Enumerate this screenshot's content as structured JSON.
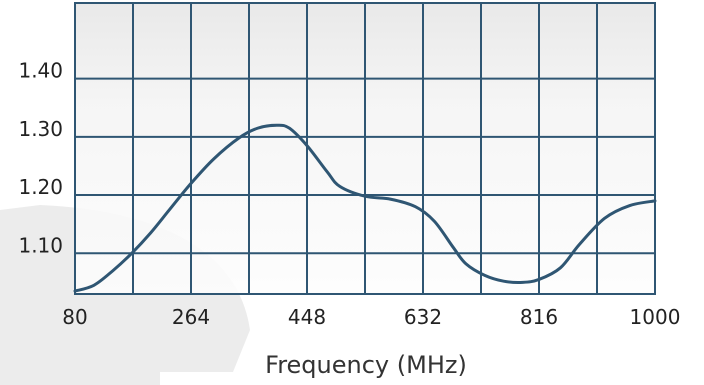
{
  "chart_data": {
    "type": "line",
    "title": "",
    "xlabel": "Frequency (MHz)",
    "ylabel": "",
    "xlim": [
      80,
      1000
    ],
    "ylim": [
      1.03,
      1.53
    ],
    "x_ticks": [
      80,
      264,
      448,
      632,
      816,
      1000
    ],
    "x_tick_labels": [
      "80",
      "264",
      "448",
      "632",
      "816",
      "1000"
    ],
    "y_ticks": [
      1.1,
      1.2,
      1.3,
      1.4
    ],
    "y_tick_labels": [
      "1.10",
      "1.20",
      "1.30",
      "1.40"
    ],
    "grid": true,
    "series": [
      {
        "color": "#2f5673",
        "x": [
          80,
          110,
          140,
          170,
          200,
          230,
          264,
          300,
          340,
          370,
          400,
          420,
          448,
          480,
          500,
          540,
          580,
          620,
          650,
          680,
          700,
          730,
          760,
          790,
          816,
          850,
          880,
          920,
          960,
          1000
        ],
        "y": [
          1.035,
          1.045,
          1.07,
          1.1,
          1.135,
          1.175,
          1.22,
          1.262,
          1.298,
          1.315,
          1.32,
          1.315,
          1.285,
          1.24,
          1.215,
          1.198,
          1.193,
          1.18,
          1.155,
          1.11,
          1.082,
          1.062,
          1.052,
          1.05,
          1.055,
          1.075,
          1.115,
          1.16,
          1.182,
          1.19
        ]
      }
    ]
  }
}
